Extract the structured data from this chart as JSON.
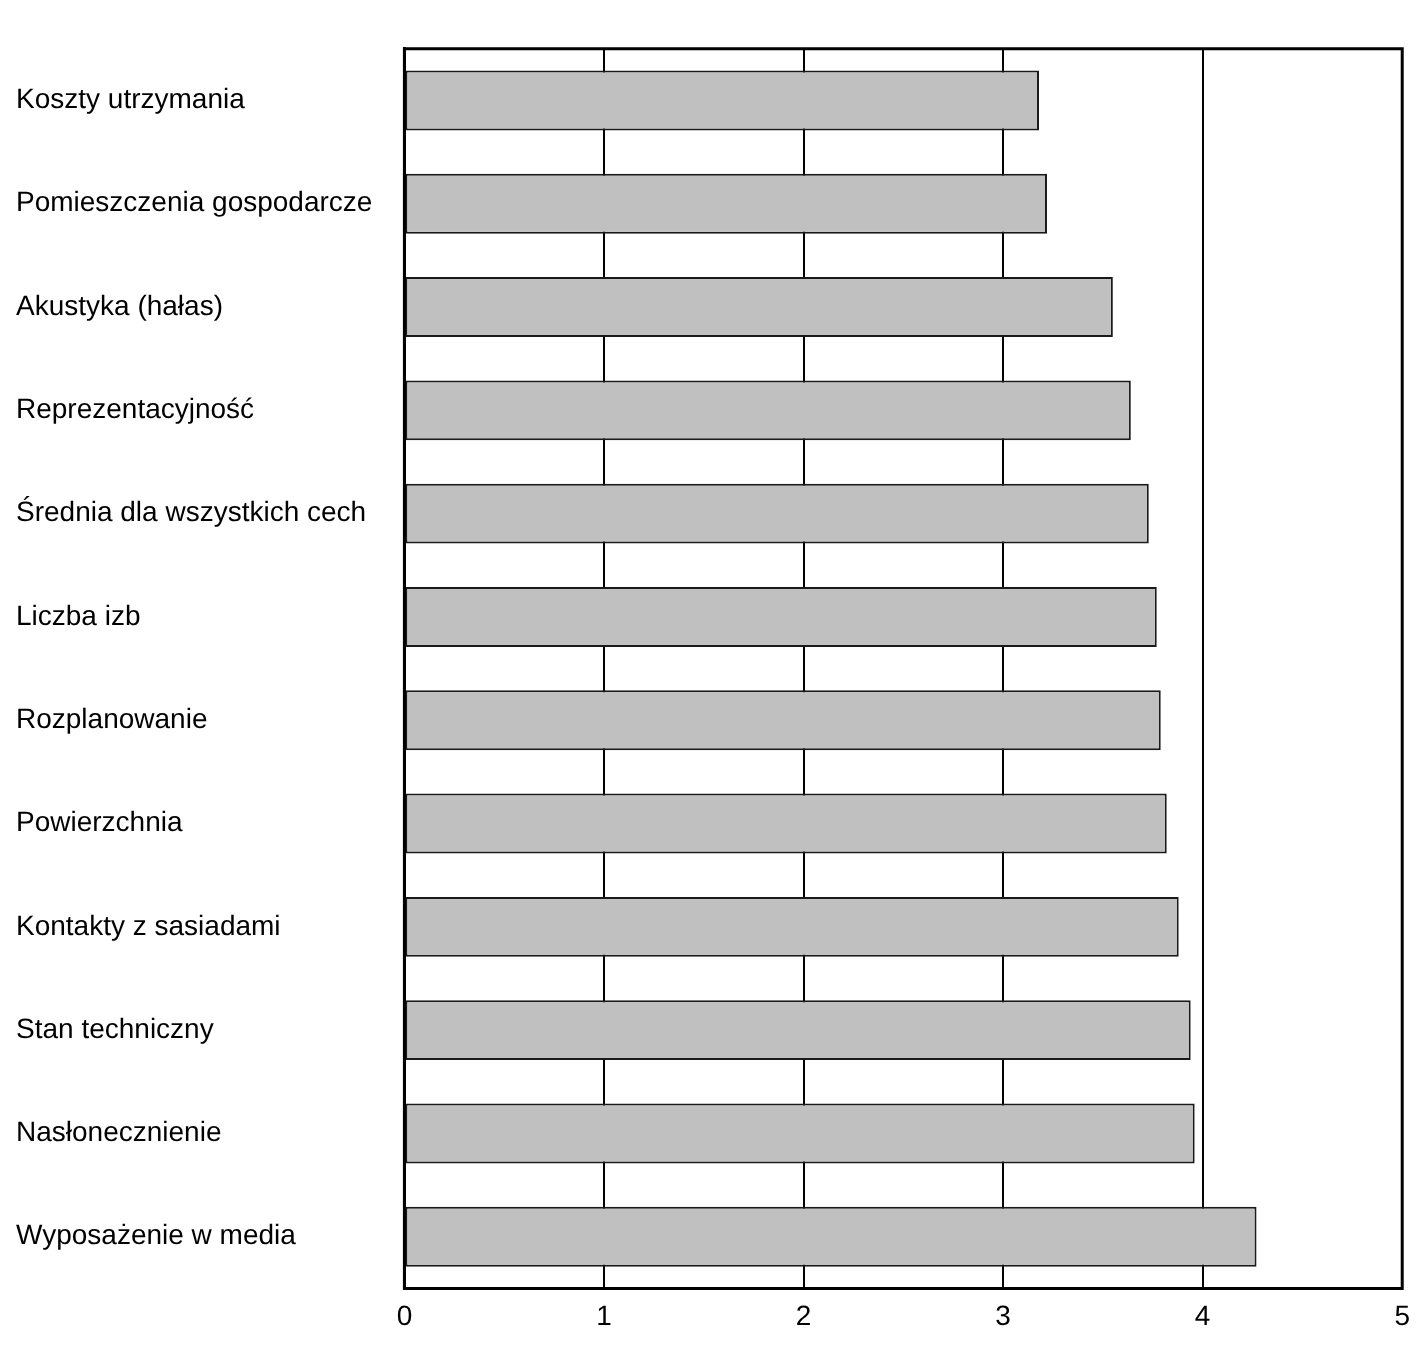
{
  "chart_data": {
    "type": "bar",
    "orientation": "horizontal",
    "categories": [
      "Koszty utrzymania",
      "Pomieszczenia gospodarcze",
      "Akustyka (hałas)",
      "Reprezentacyjność",
      "Średnia dla wszystkich cech",
      "Liczba izb",
      "Rozplanowanie",
      "Powierzchnia",
      "Kontakty z sasiadami",
      "Stan techniczny",
      "Nasłonecznienie",
      "Wyposażenie w media"
    ],
    "values": [
      3.18,
      3.22,
      3.55,
      3.64,
      3.73,
      3.77,
      3.79,
      3.82,
      3.88,
      3.94,
      3.96,
      4.27
    ],
    "color": "#c0c0c0",
    "xlim": [
      0,
      5
    ],
    "xticks": [
      0,
      1,
      2,
      3,
      4,
      5
    ],
    "grid": "x"
  }
}
